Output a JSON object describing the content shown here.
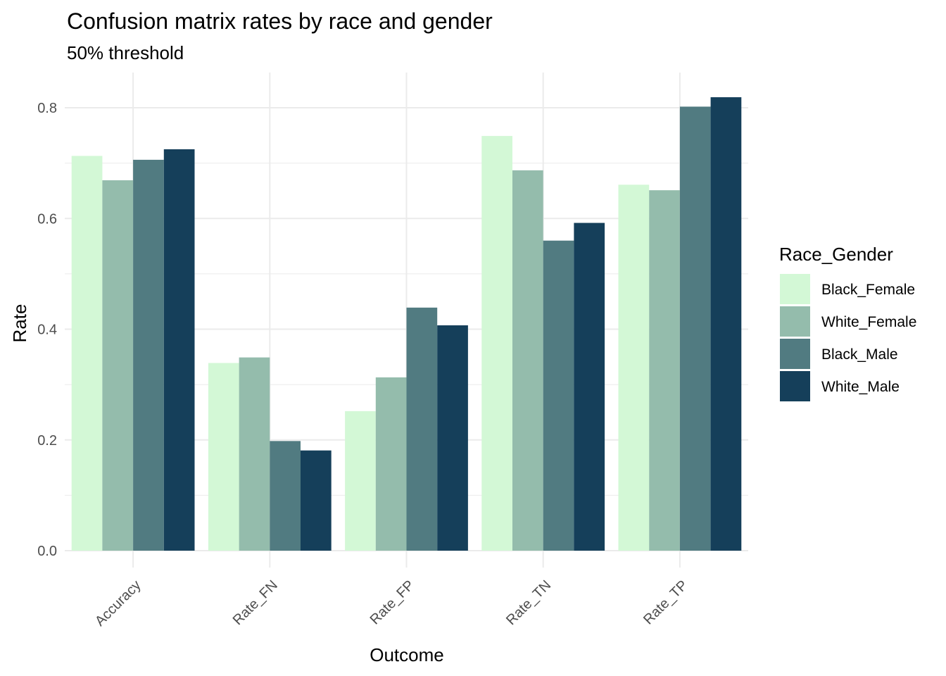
{
  "chart_data": {
    "type": "bar",
    "title": "Confusion matrix rates by race and gender",
    "subtitle": "50% threshold",
    "xlabel": "Outcome",
    "ylabel": "Rate",
    "categories": [
      "Accuracy",
      "Rate_FN",
      "Rate_FP",
      "Rate_TN",
      "Rate_TP"
    ],
    "series": [
      {
        "name": "Black_Female",
        "color": "#d3f8d6",
        "values": [
          0.713,
          0.339,
          0.252,
          0.749,
          0.661
        ]
      },
      {
        "name": "White_Female",
        "color": "#94bcac",
        "values": [
          0.669,
          0.349,
          0.313,
          0.687,
          0.651
        ]
      },
      {
        "name": "Black_Male",
        "color": "#517b81",
        "values": [
          0.706,
          0.198,
          0.439,
          0.56,
          0.802
        ]
      },
      {
        "name": "White_Male",
        "color": "#153f5a",
        "values": [
          0.725,
          0.181,
          0.407,
          0.592,
          0.819
        ]
      }
    ],
    "ylim": [
      0,
      0.86
    ],
    "y_ticks": [
      "0.0",
      "0.2",
      "0.4",
      "0.6",
      "0.8"
    ],
    "grid": true,
    "legend": {
      "title": "Race_Gender",
      "position": "right"
    }
  }
}
